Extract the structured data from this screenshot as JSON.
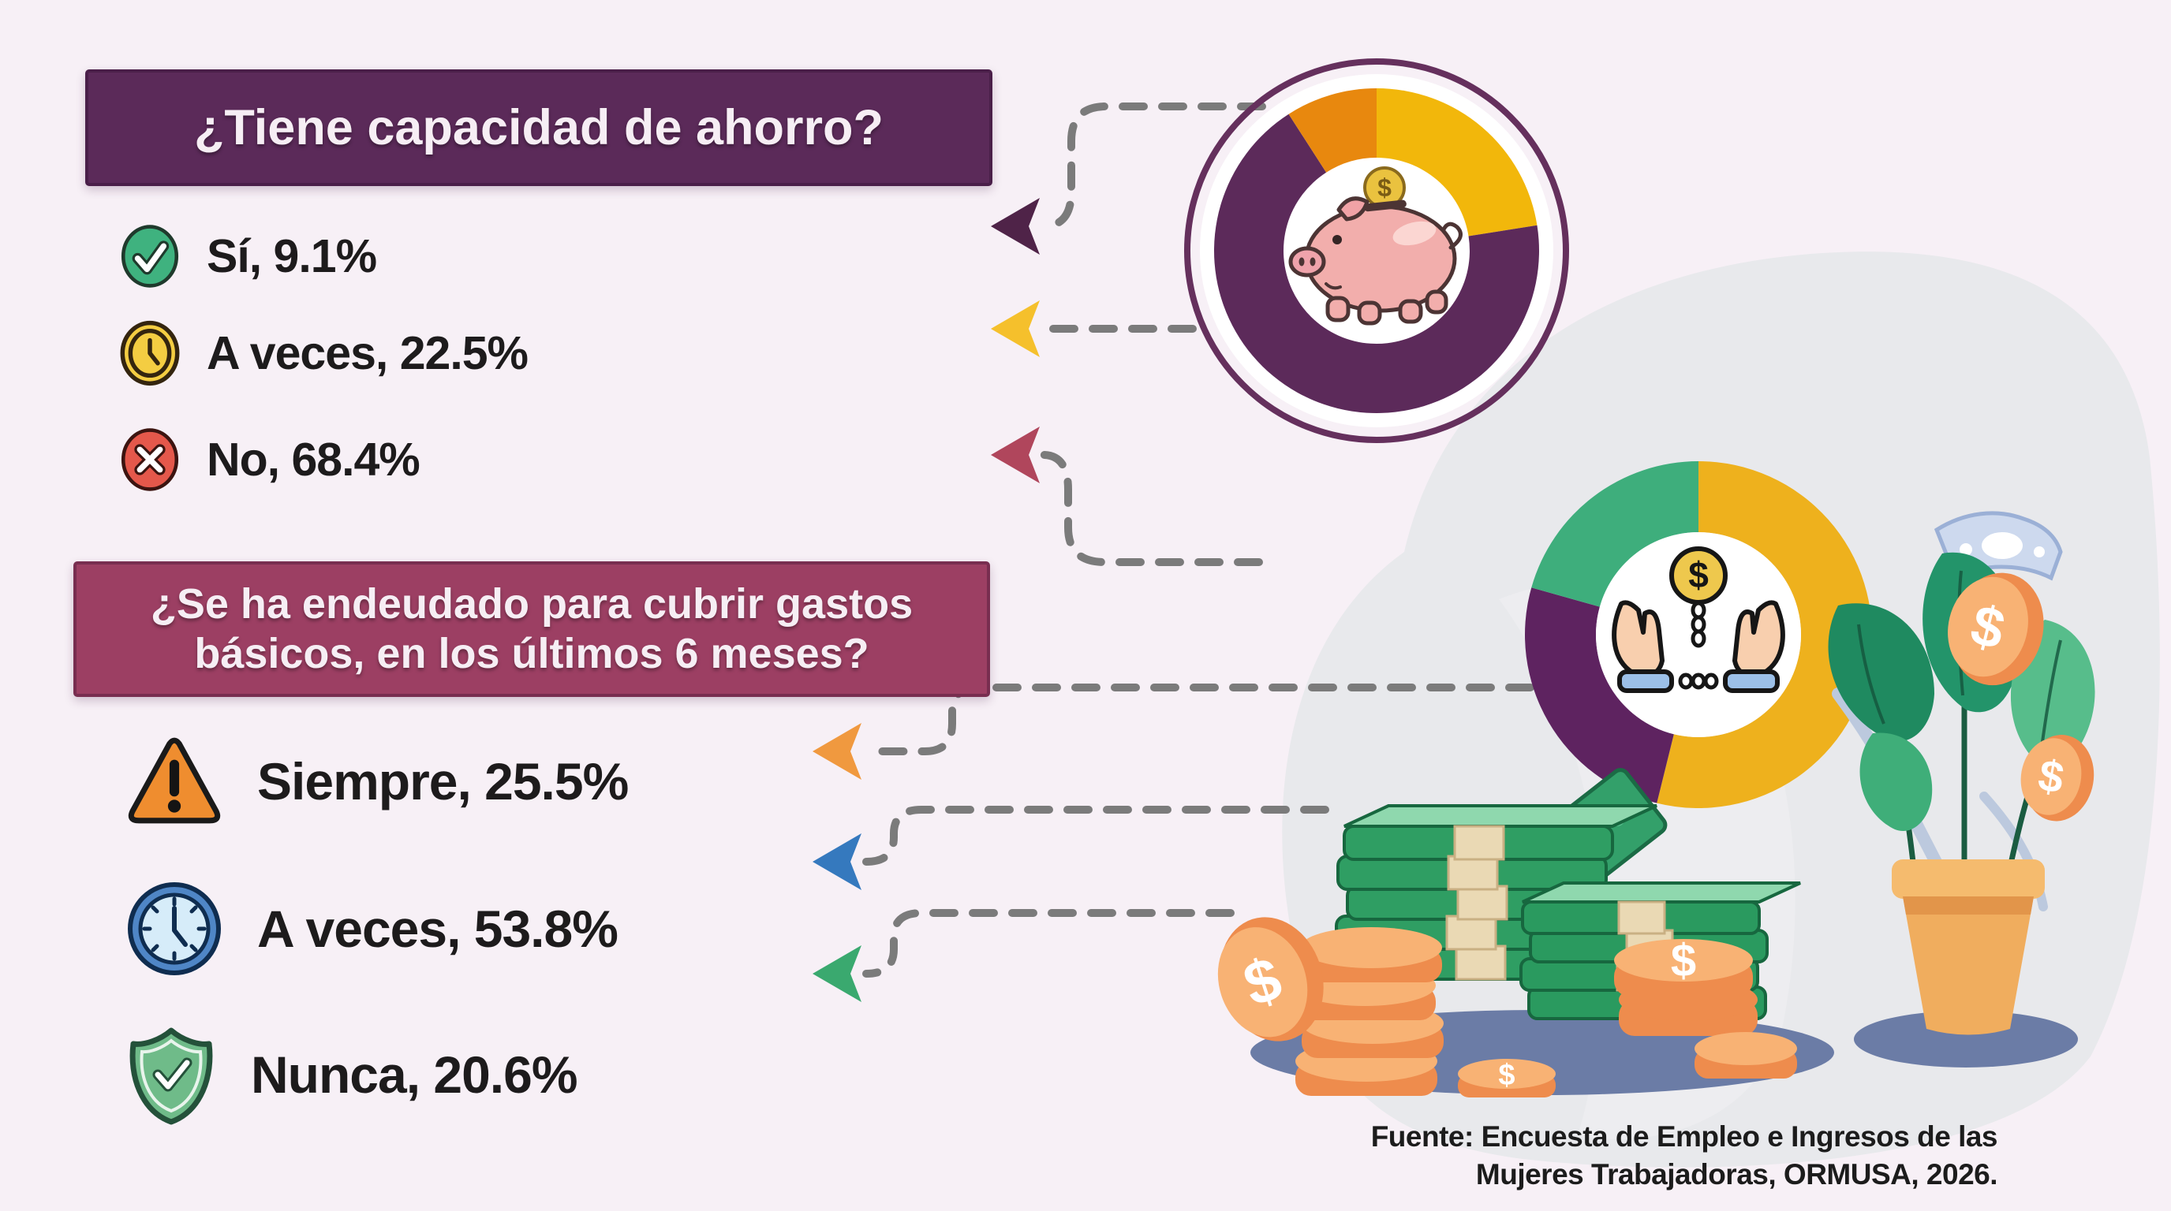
{
  "theme": {
    "background": "#f7f0f6",
    "q1_box_color": "#5b2a59",
    "q2_box_color": "#9c3f63",
    "text_color": "#1d1b1c",
    "connector_dash_color": "#7b7b7b",
    "blob_color": "#e8e9ec",
    "shadow_color": "#6b7ca6"
  },
  "q1": {
    "title": "¿Tiene capacidad de ahorro?",
    "items": [
      {
        "label": "Sí,",
        "value": "9.1%",
        "icon": "check-circle-icon"
      },
      {
        "label": "A veces,",
        "value": "22.5%",
        "icon": "clock-coin-icon"
      },
      {
        "label": "No,",
        "value": "68.4%",
        "icon": "x-circle-icon"
      }
    ]
  },
  "q2": {
    "title_line1": "¿Se ha endeudado para cubrir gastos",
    "title_line2": "básicos, en los últimos 6 meses?",
    "items": [
      {
        "label": "Siempre,",
        "value": "25.5%",
        "icon": "warning-triangle-icon"
      },
      {
        "label": "A veces,",
        "value": "53.8%",
        "icon": "wall-clock-icon"
      },
      {
        "label": "Nunca,",
        "value": "20.6%",
        "icon": "shield-check-icon"
      }
    ]
  },
  "source": {
    "line1": "Fuente: Encuesta de Empleo e Ingresos de las",
    "line2": "Mujeres Trabajadoras, ORMUSA, 2026."
  },
  "glyphs": {
    "dollar": "$"
  },
  "connectors": [
    {
      "target": "si",
      "color": "#4f2348"
    },
    {
      "target": "a-veces-ahorro",
      "color": "#f5c02c"
    },
    {
      "target": "no",
      "color": "#b0465c"
    },
    {
      "target": "siempre",
      "color": "#f0993f"
    },
    {
      "target": "a-veces-deuda",
      "color": "#3579be"
    },
    {
      "target": "nunca",
      "color": "#3aa96f"
    }
  ],
  "chart_data": [
    {
      "type": "pie",
      "donut": true,
      "title": "¿Tiene capacidad de ahorro?",
      "labels": [
        "Sí",
        "A veces",
        "No"
      ],
      "values": [
        9.1,
        22.5,
        68.4
      ],
      "colors": [
        "#e8880e",
        "#f2b70b",
        "#5c2a5a"
      ],
      "center_icon": "piggy-bank",
      "legend": "none",
      "start_at_top": true,
      "clockwise_order": [
        "A veces",
        "No",
        "Sí"
      ]
    },
    {
      "type": "pie",
      "donut": true,
      "title": "¿Se ha endeudado para cubrir gastos básicos, en los últimos 6 meses?",
      "labels": [
        "Siempre",
        "A veces",
        "Nunca"
      ],
      "values": [
        25.5,
        53.8,
        20.6
      ],
      "colors": [
        "#5e2360",
        "#eeb11d",
        "#3eae7c"
      ],
      "center_icon": "handcuffed-hands-coin",
      "legend": "none",
      "start_at_top": true,
      "clockwise_order": [
        "A veces",
        "Siempre",
        "Nunca"
      ]
    }
  ]
}
